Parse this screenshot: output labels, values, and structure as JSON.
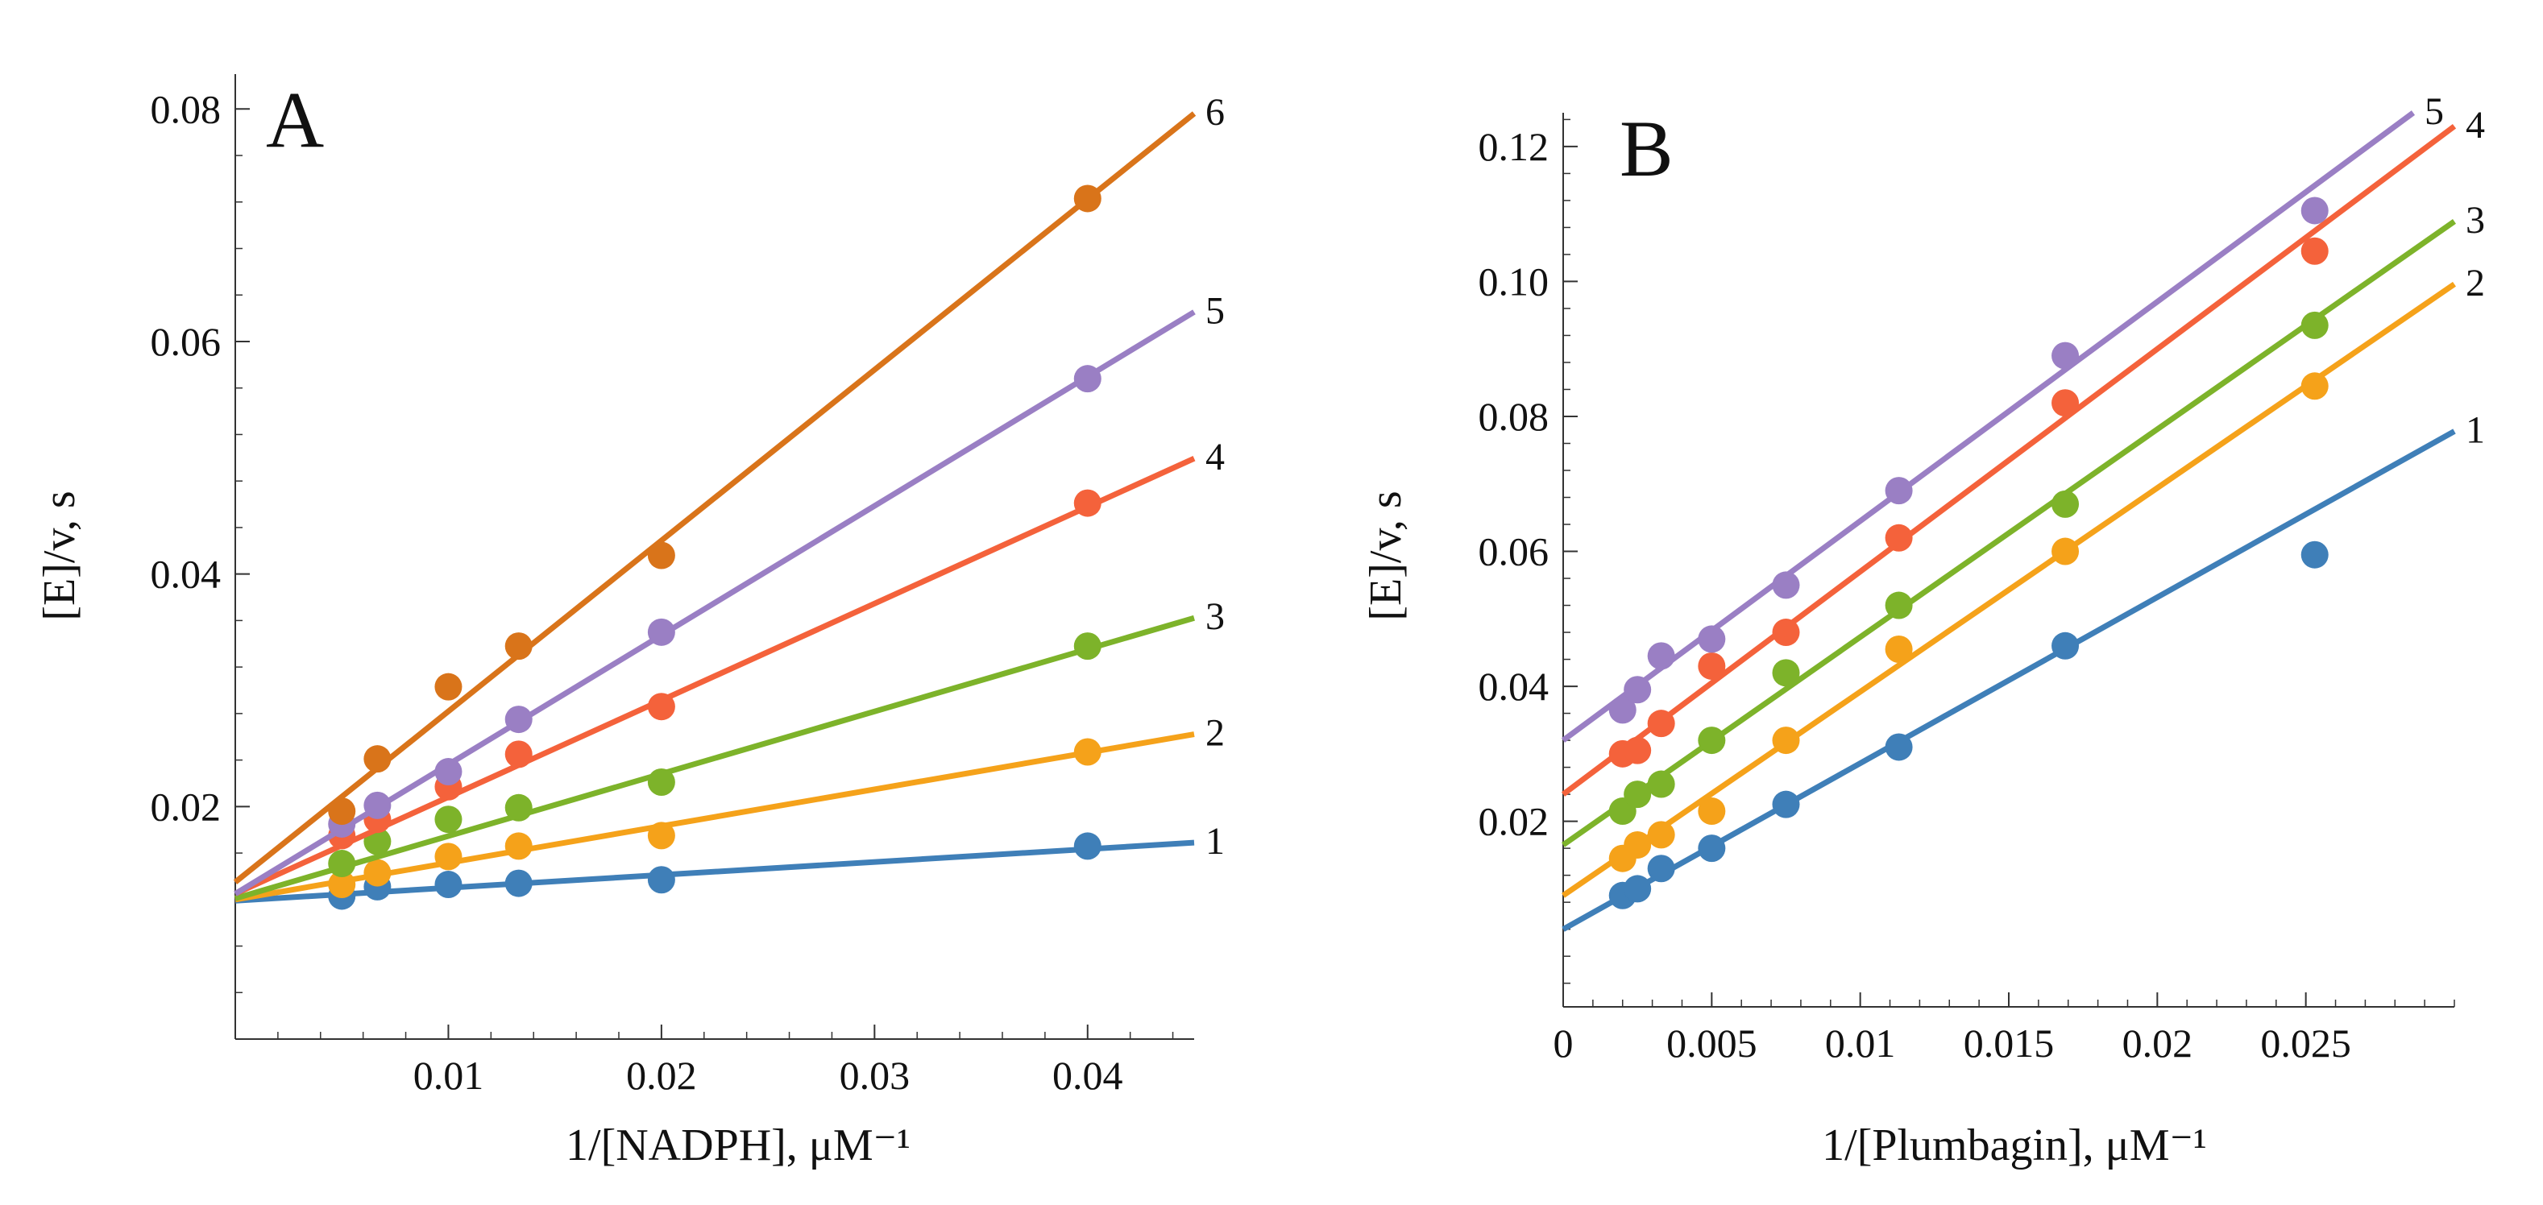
{
  "colors": {
    "1": "#3F7FB8",
    "2": "#F5A21A",
    "3": "#7DB32A",
    "4": "#F4623B",
    "5": "#9A7FC4",
    "6": "#D9741A",
    "axis": "#333333"
  },
  "chart_data": [
    {
      "type": "scatter",
      "panel_label": "A",
      "xlabel": "1/[NADPH], μM⁻¹",
      "ylabel": "[E]/v, s",
      "xlim": [
        0,
        0.045
      ],
      "ylim": [
        0,
        0.083
      ],
      "x_ticks": [
        0.01,
        0.02,
        0.03,
        0.04
      ],
      "x_tick_labels": [
        "0.01",
        "0.02",
        "0.03",
        "0.04"
      ],
      "y_ticks": [
        0.02,
        0.04,
        0.06,
        0.08
      ],
      "y_tick_labels": [
        "0.02",
        "0.04",
        "0.06",
        "0.08"
      ],
      "x": [
        0.005,
        0.00667,
        0.01,
        0.0133,
        0.02,
        0.04
      ],
      "series": [
        {
          "name": "1",
          "color_key": "1",
          "y": [
            0.0123,
            0.0131,
            0.0133,
            0.0134,
            0.0137,
            0.0166
          ],
          "fit": {
            "intercept": 0.0119,
            "slope": 0.111
          }
        },
        {
          "name": "2",
          "color_key": "2",
          "y": [
            0.0133,
            0.0143,
            0.0157,
            0.0166,
            0.0175,
            0.0247
          ],
          "fit": {
            "intercept": 0.012,
            "slope": 0.316
          }
        },
        {
          "name": "3",
          "color_key": "3",
          "y": [
            0.0151,
            0.017,
            0.0189,
            0.0199,
            0.0221,
            0.0338
          ],
          "fit": {
            "intercept": 0.0121,
            "slope": 0.536
          }
        },
        {
          "name": "4",
          "color_key": "4",
          "y": [
            0.0175,
            0.0189,
            0.0217,
            0.0245,
            0.0286,
            0.0461
          ],
          "fit": {
            "intercept": 0.0125,
            "slope": 0.832
          }
        },
        {
          "name": "5",
          "color_key": "5",
          "y": [
            0.0185,
            0.0201,
            0.023,
            0.0275,
            0.035,
            0.0568
          ],
          "fit": {
            "intercept": 0.0125,
            "slope": 1.112
          }
        },
        {
          "name": "6",
          "color_key": "6",
          "y": [
            0.0196,
            0.0241,
            0.0303,
            0.0338,
            0.0416,
            0.0723
          ],
          "fit": {
            "intercept": 0.0135,
            "slope": 1.469
          }
        }
      ]
    },
    {
      "type": "scatter",
      "panel_label": "B",
      "xlabel": "1/[Plumbagin], μM⁻¹",
      "ylabel": "[E]/v, s",
      "xlim": [
        0,
        0.03
      ],
      "ylim": [
        -0.0075,
        0.125
      ],
      "x_ticks": [
        0,
        0.005,
        0.01,
        0.015,
        0.02,
        0.025
      ],
      "x_tick_labels": [
        "0",
        "0.005",
        "0.01",
        "0.015",
        "0.02",
        "0.025"
      ],
      "y_ticks": [
        0.02,
        0.04,
        0.06,
        0.08,
        0.1,
        0.12
      ],
      "y_tick_labels": [
        "0.02",
        "0.04",
        "0.06",
        "0.08",
        "0.10",
        "0.12"
      ],
      "x": [
        0.002,
        0.0025,
        0.0033,
        0.005,
        0.0075,
        0.0113,
        0.0169,
        0.0253
      ],
      "series": [
        {
          "name": "1",
          "color_key": "1",
          "y": [
            0.009,
            0.01,
            0.013,
            0.016,
            0.0225,
            0.031,
            0.046,
            0.0595
          ],
          "fit": {
            "intercept": 0.004,
            "slope": 2.46
          }
        },
        {
          "name": "2",
          "color_key": "2",
          "y": [
            0.0145,
            0.0165,
            0.018,
            0.0215,
            0.032,
            0.0455,
            0.06,
            0.0845
          ],
          "fit": {
            "intercept": 0.009,
            "slope": 3.02
          }
        },
        {
          "name": "3",
          "color_key": "3",
          "y": [
            0.0215,
            0.024,
            0.0255,
            0.032,
            0.042,
            0.052,
            0.067,
            0.0935
          ],
          "fit": {
            "intercept": 0.0165,
            "slope": 3.08
          }
        },
        {
          "name": "4",
          "color_key": "4",
          "y": [
            0.03,
            0.0305,
            0.0345,
            0.043,
            0.048,
            0.062,
            0.082,
            0.1045
          ],
          "fit": {
            "intercept": 0.024,
            "slope": 3.3
          }
        },
        {
          "name": "5",
          "color_key": "5",
          "y": [
            0.0365,
            0.0395,
            0.0445,
            0.047,
            0.055,
            0.069,
            0.089,
            0.1105
          ],
          "fit": {
            "intercept": 0.032,
            "slope": 3.25
          }
        }
      ]
    }
  ]
}
